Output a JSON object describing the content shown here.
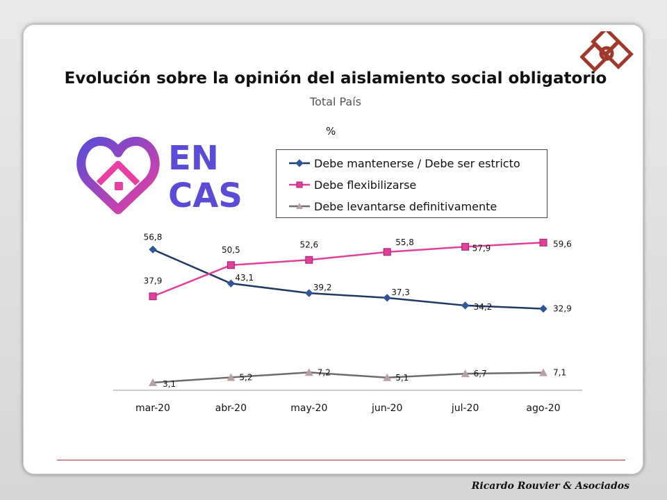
{
  "chart_data": {
    "type": "line",
    "title": "Evolución sobre la opinión del aislamiento social obligatorio",
    "subtitle": "Total País",
    "unit_label": "%",
    "categories": [
      "mar-20",
      "abr-20",
      "may-20",
      "jun-20",
      "jul-20",
      "ago-20"
    ],
    "series": [
      {
        "name": "Debe mantenerse  / Debe ser estricto",
        "values": [
          56.8,
          43.1,
          39.2,
          37.3,
          34.2,
          32.9
        ],
        "labels": [
          "56,8",
          "43,1",
          "39,2",
          "37,3",
          "34,2",
          "32,9"
        ],
        "color": "#1f3864",
        "marker": "diamond"
      },
      {
        "name": "Debe flexibilizarse",
        "values": [
          37.9,
          50.5,
          52.6,
          55.8,
          57.9,
          59.6
        ],
        "labels": [
          "37,9",
          "50,5",
          "52,6",
          "55,8",
          "57,9",
          "59,6"
        ],
        "color": "#e0409a",
        "marker": "square"
      },
      {
        "name": "Debe levantarse definitivamente",
        "values": [
          3.1,
          5.2,
          7.2,
          5.1,
          6.7,
          7.1
        ],
        "labels": [
          "3,1",
          "5,2",
          "7,2",
          "5,1",
          "6,7",
          "7,1"
        ],
        "color": "#6b6b6b",
        "marker": "triangle"
      }
    ],
    "ylim": [
      0,
      65
    ],
    "grid": false,
    "legend_position": "top-right"
  },
  "branding": {
    "logo_text_line1": "EN",
    "logo_text_line2": "CASA",
    "signature": "Ricardo Rouvier & Asociados"
  }
}
